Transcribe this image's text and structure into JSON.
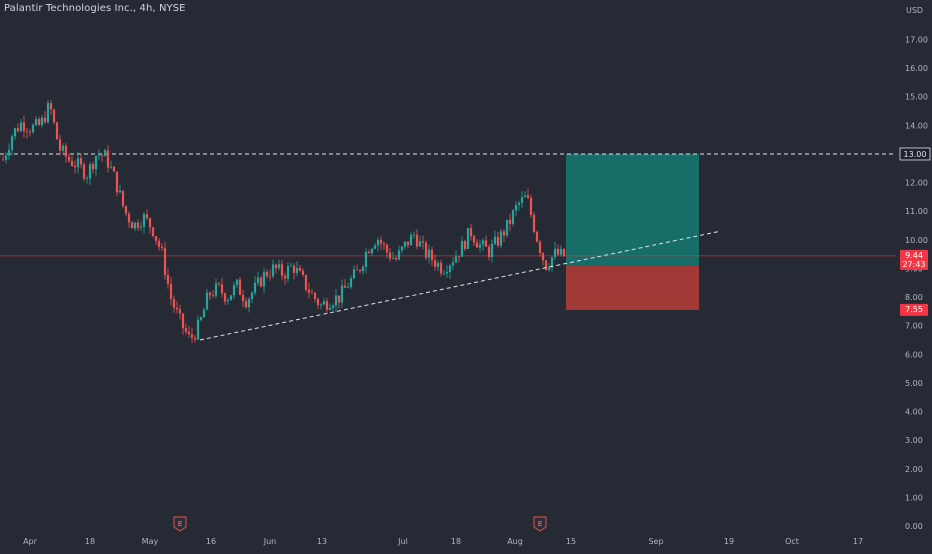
{
  "header": {
    "title": "Palantir Technologies Inc., 4h, NYSE",
    "currency": "USD"
  },
  "colors": {
    "background": "#262a35",
    "bull": "#26a69a",
    "bear": "#ef5350",
    "target_zone": "#176e68",
    "stop_zone": "#a13a36",
    "price_line": "#f23645",
    "dashed_line": "#e0e3eb"
  },
  "chart_data": {
    "type": "candlestick",
    "title": "Palantir Technologies Inc., 4h, NYSE",
    "ylim": [
      0,
      18
    ],
    "y_ticks": [
      "17.00",
      "16.00",
      "15.00",
      "14.00",
      "13.00",
      "12.00",
      "11.00",
      "10.00",
      "9.00",
      "8.00",
      "7.00",
      "6.00",
      "5.00",
      "4.00",
      "3.00",
      "2.00",
      "1.00",
      "0.00"
    ],
    "x_tick_labels": [
      "Apr",
      "18",
      "May",
      "16",
      "Jun",
      "13",
      "Jul",
      "18",
      "Aug",
      "15",
      "Sep",
      "19",
      "Oct",
      "17"
    ],
    "close_path": [
      12.8,
      13.7,
      14.1,
      13.9,
      14.0,
      14.7,
      13.2,
      12.8,
      12.6,
      12.3,
      13.0,
      12.9,
      12.1,
      11.0,
      10.5,
      10.8,
      10.4,
      9.5,
      7.9,
      7.1,
      6.5,
      7.0,
      8.1,
      8.3,
      8.0,
      8.4,
      7.9,
      8.3,
      8.8,
      9.0,
      8.8,
      9.1,
      8.6,
      8.1,
      7.7,
      7.9,
      8.0,
      8.5,
      8.9,
      9.7,
      10.1,
      9.6,
      9.3,
      9.8,
      10.2,
      9.6,
      9.3,
      9.0,
      9.3,
      9.7,
      10.3,
      9.8,
      9.6,
      10.0,
      10.5,
      11.2,
      11.5,
      10.2,
      9.1,
      9.5,
      9.44
    ],
    "annotations": {
      "resistance": 13.0,
      "last_price": "9.44",
      "countdown": "27:43",
      "stop_loss": "7.55",
      "target": "13.00",
      "entry": 9.1,
      "earnings_markers": [
        "E",
        "E"
      ],
      "trendline": [
        [
          6.5,
          "May 13"
        ],
        [
          10.3,
          "Sep 15"
        ]
      ]
    }
  }
}
